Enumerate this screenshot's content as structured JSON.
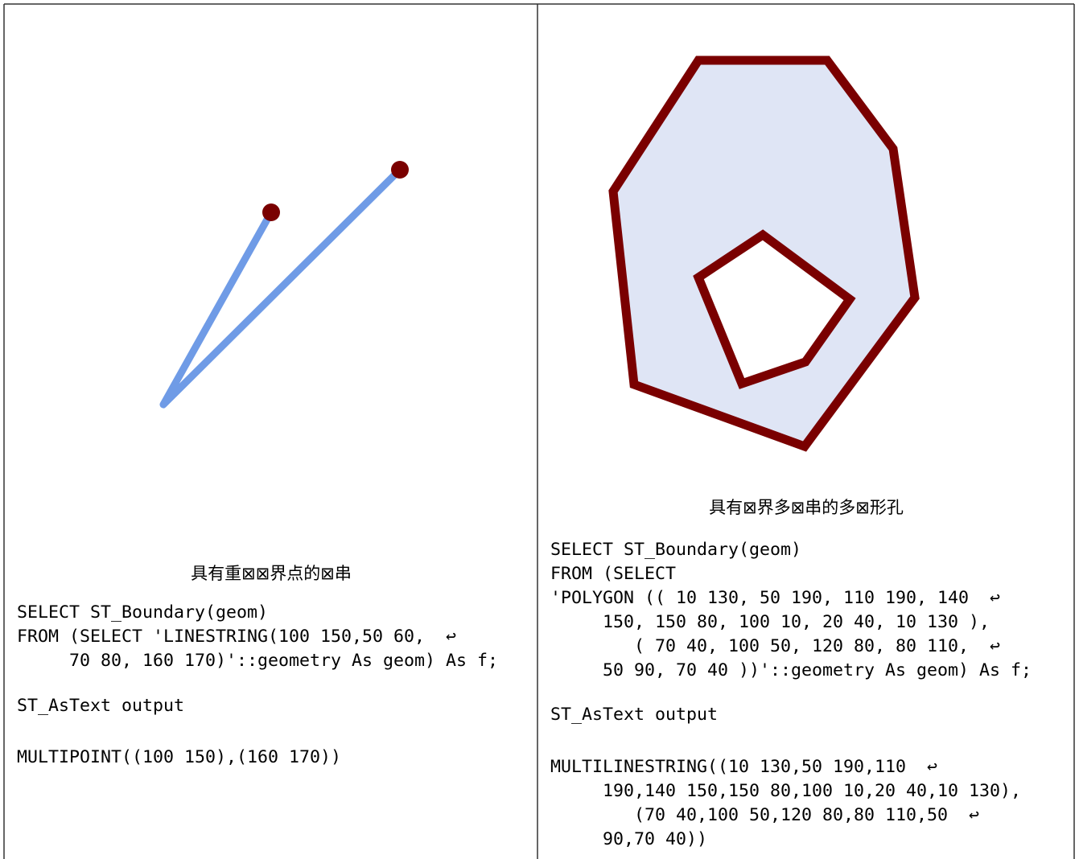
{
  "cells": [
    {
      "caption": "具有重⊠⊠界点的⊠串",
      "code": [
        "SELECT ST_Boundary(geom)",
        "FROM (SELECT 'LINESTRING(100 150,50 60,  ↩",
        "     70 80, 160 170)'::geometry As geom) As f;"
      ],
      "output_label": "ST_AsText output",
      "output": [
        "MULTIPOINT((100 150),(160 170))"
      ]
    },
    {
      "caption": "具有⊠界多⊠串的多⊠形孔",
      "code": [
        "SELECT ST_Boundary(geom)",
        "FROM (SELECT",
        "'POLYGON (( 10 130, 50 190, 110 190, 140  ↩",
        "     150, 150 80, 100 10, 20 40, 10 130 ),",
        "        ( 70 40, 100 50, 120 80, 80 110,  ↩",
        "     50 90, 70 40 ))'::geometry As geom) As f;"
      ],
      "output_label": "ST_AsText output",
      "output": [
        "MULTILINESTRING((10 130,50 190,110  ↩",
        "     190,140 150,150 80,100 10,20 40,10 130),",
        "        (70 40,100 50,120 80,80 110,50  ↩",
        "     90,70 40))"
      ]
    }
  ]
}
